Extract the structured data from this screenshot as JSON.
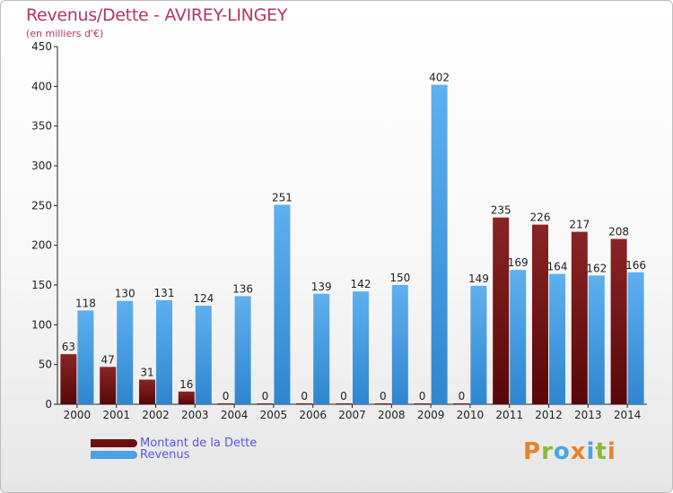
{
  "header": {
    "title": "Revenus/Dette - AVIREY-LINGEY",
    "subtitle": "(en milliers d'€)"
  },
  "colors": {
    "dette": "#7a1818",
    "revenus": "#4ba0e6",
    "title": "#b5336a",
    "legend_text": "#5a58e0"
  },
  "legend": {
    "items": [
      {
        "label": "Montant de la Dette",
        "color": "#6b0f0f"
      },
      {
        "label": "Revenus",
        "color": "#4ba0e6"
      }
    ]
  },
  "logo": {
    "letters": [
      "P",
      "r",
      "o",
      "x",
      "i",
      "t",
      "i"
    ],
    "colors": [
      "#e8822a",
      "#8ab93a",
      "#4aa5e0",
      "#e8822a",
      "#4aa5e0",
      "#8ab93a",
      "#e8822a"
    ]
  },
  "chart_data": {
    "type": "bar",
    "categories": [
      "2000",
      "2001",
      "2002",
      "2003",
      "2004",
      "2005",
      "2006",
      "2007",
      "2008",
      "2009",
      "2010",
      "2011",
      "2012",
      "2013",
      "2014"
    ],
    "series": [
      {
        "name": "Montant de la Dette",
        "values": [
          63,
          47,
          31,
          16,
          0,
          0,
          0,
          0,
          0,
          0,
          0,
          235,
          226,
          217,
          208
        ]
      },
      {
        "name": "Revenus",
        "values": [
          118,
          130,
          131,
          124,
          136,
          251,
          139,
          142,
          150,
          402,
          149,
          169,
          164,
          162,
          166
        ]
      }
    ],
    "yticks": [
      0,
      50,
      100,
      150,
      200,
      250,
      300,
      350,
      400,
      450
    ],
    "ylim": [
      0,
      450
    ],
    "grid": false,
    "legend_position": "bottom-left"
  }
}
